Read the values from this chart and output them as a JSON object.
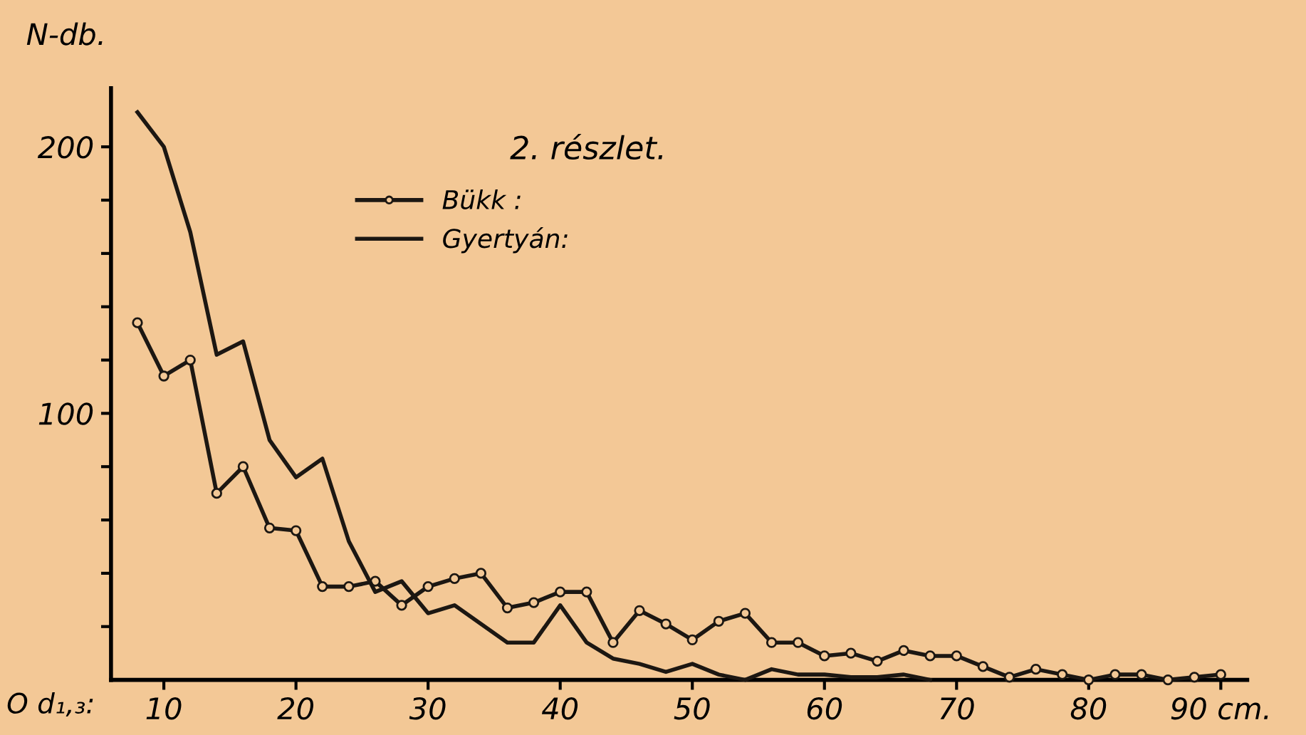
{
  "chart_data": {
    "type": "line",
    "title": "2. részlet.",
    "xlabel": "O d₁,₃:",
    "ylabel": "N-db.",
    "xlim": [
      6,
      92
    ],
    "ylim": [
      0,
      222
    ],
    "xticks": [
      10,
      20,
      30,
      40,
      50,
      60,
      70,
      80,
      {
        "value": 90,
        "label": "90 cm."
      }
    ],
    "yticks": [
      {
        "value": 20,
        "label": null
      },
      {
        "value": 40,
        "label": null
      },
      {
        "value": 60,
        "label": null
      },
      {
        "value": 80,
        "label": null
      },
      100,
      {
        "value": 120,
        "label": null
      },
      {
        "value": 140,
        "label": null
      },
      {
        "value": 160,
        "label": null
      },
      {
        "value": 180,
        "label": null
      },
      200
    ],
    "grid": false,
    "legend": "top",
    "line_style": "solid",
    "series": [
      {
        "name": "Bükk :",
        "color": "#1c1712",
        "marker": "circle",
        "x": [
          8,
          10,
          12,
          14,
          16,
          18,
          20,
          22,
          24,
          26,
          28,
          30,
          32,
          34,
          36,
          38,
          40,
          42,
          44,
          46,
          48,
          50,
          52,
          54,
          56,
          58,
          60,
          62,
          64,
          66,
          68,
          70,
          72,
          74,
          76,
          78,
          80,
          82,
          84,
          86,
          88,
          90
        ],
        "values": [
          134,
          114,
          120,
          70,
          80,
          57,
          56,
          35,
          35,
          37,
          28,
          35,
          38,
          40,
          27,
          29,
          33,
          33,
          14,
          26,
          21,
          15,
          22,
          25,
          14,
          14,
          9,
          10,
          7,
          11,
          9,
          9,
          5,
          1,
          4,
          2,
          0,
          2,
          2,
          0,
          1,
          2
        ]
      },
      {
        "name": "Gyertyán:",
        "color": "#1c1712",
        "marker": "none",
        "x": [
          8,
          10,
          12,
          14,
          16,
          18,
          20,
          22,
          24,
          26,
          28,
          30,
          32,
          34,
          36,
          38,
          40,
          42,
          44,
          46,
          48,
          50,
          52,
          54,
          56,
          58,
          60,
          62,
          64,
          66,
          68
        ],
        "values": [
          213,
          200,
          168,
          122,
          127,
          90,
          76,
          83,
          52,
          33,
          37,
          25,
          28,
          21,
          14,
          14,
          28,
          14,
          8,
          6,
          3,
          6,
          2,
          0,
          4,
          2,
          2,
          1,
          1,
          2,
          0
        ]
      }
    ]
  }
}
